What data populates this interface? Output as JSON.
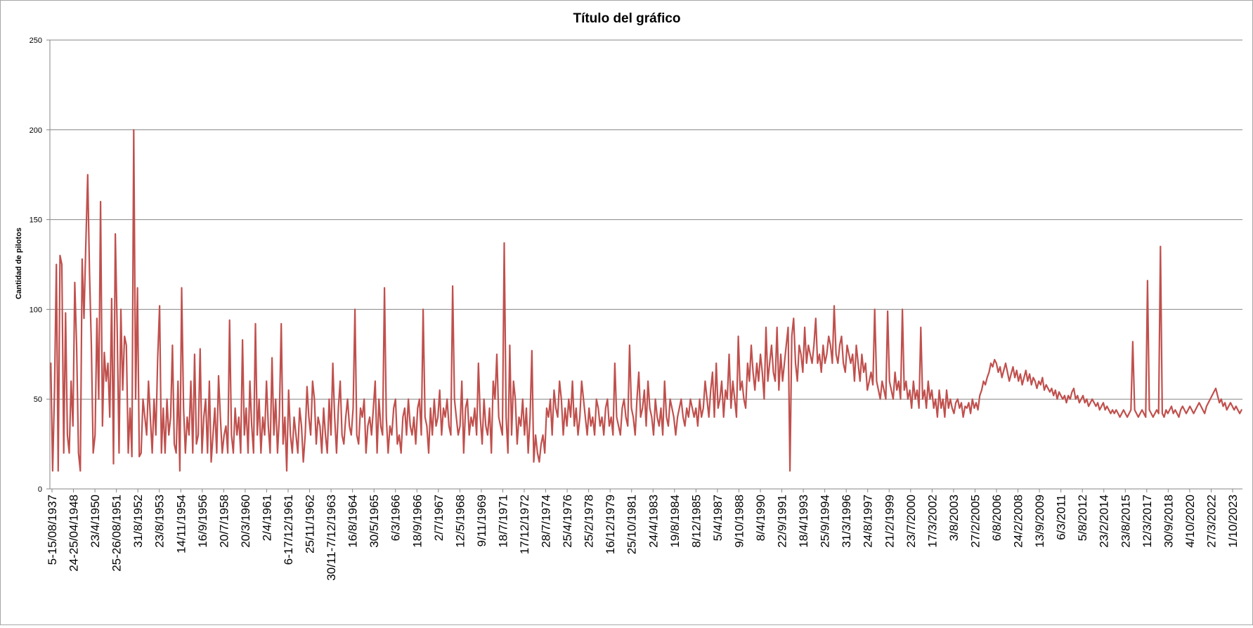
{
  "chart_data": {
    "type": "line",
    "title": "Título del gráfico",
    "xlabel": "",
    "ylabel": "Cantidad de pilotos",
    "ylim": [
      0,
      250
    ],
    "yticks": [
      0,
      50,
      100,
      150,
      200,
      250
    ],
    "grid": true,
    "legend": "none",
    "colors": {
      "line": "#c0504d",
      "grid": "#868686",
      "axis": "#868686",
      "text": "#000000"
    },
    "x_tick_labels": [
      "5-15/08/1937",
      "24-25/04/1948",
      "23/4/1950",
      "25-26/08/1951",
      "31/8/1952",
      "23/8/1953",
      "14/11/1954",
      "16/9/1956",
      "20/7/1958",
      "20/3/1960",
      "2/4/1961",
      "6-17/12/1961",
      "25/11/1962",
      "30/11-7/12/1963",
      "16/8/1964",
      "30/5/1965",
      "6/3/1966",
      "18/9/1966",
      "2/7/1967",
      "12/5/1968",
      "9/11/1969",
      "18/7/1971",
      "17/12/1972",
      "28/7/1974",
      "25/4/1976",
      "25/2/1978",
      "16/12/1979",
      "25/10/1981",
      "24/4/1983",
      "19/8/1984",
      "8/12/1985",
      "5/4/1987",
      "9/10/1988",
      "8/4/1990",
      "22/9/1991",
      "18/4/1993",
      "25/9/1994",
      "31/3/1996",
      "24/8/1997",
      "21/2/1999",
      "23/7/2000",
      "17/3/2002",
      "3/8/2003",
      "27/2/2005",
      "6/8/2006",
      "24/2/2008",
      "13/9/2009",
      "6/3/2011",
      "5/8/2012",
      "23/2/2014",
      "23/8/2015",
      "12/3/2017",
      "30/9/2018",
      "4/10/2020",
      "27/3/2022",
      "1/10/2023"
    ],
    "series": [
      {
        "values": [
          70,
          10,
          55,
          125,
          10,
          130,
          125,
          20,
          98,
          30,
          20,
          60,
          35,
          115,
          80,
          20,
          10,
          128,
          95,
          136,
          175,
          120,
          80,
          20,
          30,
          95,
          50,
          160,
          35,
          76,
          60,
          70,
          40,
          106,
          14,
          142,
          90,
          20,
          100,
          55,
          85,
          80,
          20,
          45,
          18,
          200,
          50,
          112,
          18,
          20,
          50,
          40,
          30,
          60,
          40,
          20,
          50,
          30,
          73,
          102,
          20,
          45,
          20,
          50,
          30,
          40,
          80,
          25,
          20,
          60,
          10,
          112,
          45,
          20,
          40,
          30,
          60,
          20,
          75,
          25,
          30,
          78,
          20,
          40,
          50,
          20,
          60,
          15,
          30,
          45,
          20,
          63,
          40,
          20,
          30,
          35,
          20,
          94,
          30,
          20,
          45,
          30,
          40,
          20,
          83,
          30,
          45,
          20,
          60,
          35,
          20,
          92,
          30,
          50,
          20,
          40,
          30,
          60,
          35,
          20,
          73,
          30,
          50,
          20,
          40,
          92,
          25,
          40,
          10,
          55,
          30,
          20,
          40,
          30,
          20,
          45,
          35,
          15,
          30,
          57,
          40,
          30,
          60,
          50,
          25,
          40,
          35,
          20,
          45,
          30,
          20,
          50,
          30,
          70,
          40,
          20,
          45,
          60,
          30,
          25,
          40,
          50,
          35,
          30,
          45,
          100,
          30,
          25,
          45,
          40,
          50,
          20,
          35,
          40,
          30,
          45,
          60,
          20,
          50,
          35,
          30,
          112,
          40,
          20,
          35,
          30,
          45,
          50,
          25,
          30,
          20,
          40,
          45,
          30,
          50,
          35,
          30,
          40,
          25,
          45,
          50,
          30,
          100,
          40,
          35,
          20,
          45,
          30,
          50,
          35,
          40,
          55,
          30,
          45,
          40,
          50,
          35,
          30,
          113,
          50,
          40,
          30,
          35,
          60,
          20,
          45,
          50,
          30,
          40,
          35,
          45,
          30,
          70,
          40,
          25,
          50,
          35,
          30,
          45,
          20,
          60,
          50,
          75,
          40,
          35,
          30,
          137,
          40,
          20,
          80,
          30,
          60,
          50,
          25,
          40,
          35,
          50,
          30,
          45,
          20,
          40,
          77,
          15,
          30,
          20,
          15,
          25,
          30,
          20,
          45,
          40,
          50,
          30,
          55,
          45,
          40,
          60,
          50,
          30,
          45,
          35,
          50,
          40,
          60,
          35,
          45,
          30,
          40,
          60,
          50,
          40,
          30,
          45,
          35,
          40,
          30,
          50,
          45,
          35,
          40,
          30,
          45,
          50,
          35,
          40,
          30,
          70,
          40,
          35,
          30,
          45,
          50,
          40,
          35,
          80,
          45,
          40,
          30,
          50,
          65,
          40,
          45,
          55,
          35,
          60,
          45,
          40,
          30,
          50,
          40,
          35,
          45,
          30,
          60,
          40,
          35,
          50,
          45,
          40,
          30,
          40,
          45,
          50,
          40,
          35,
          45,
          40,
          50,
          45,
          40,
          45,
          35,
          50,
          40,
          45,
          60,
          50,
          40,
          55,
          65,
          40,
          70,
          45,
          50,
          60,
          40,
          55,
          50,
          75,
          45,
          60,
          50,
          40,
          85,
          55,
          60,
          50,
          45,
          70,
          60,
          80,
          65,
          55,
          70,
          60,
          75,
          65,
          50,
          90,
          60,
          70,
          80,
          65,
          60,
          90,
          55,
          75,
          60,
          70,
          80,
          90,
          10,
          85,
          95,
          70,
          60,
          80,
          75,
          65,
          90,
          70,
          80,
          75,
          70,
          80,
          95,
          70,
          75,
          65,
          80,
          70,
          75,
          85,
          80,
          70,
          102,
          75,
          70,
          80,
          85,
          70,
          65,
          80,
          75,
          70,
          75,
          60,
          80,
          70,
          60,
          75,
          65,
          70,
          55,
          60,
          65,
          58,
          100,
          60,
          55,
          50,
          60,
          55,
          50,
          99,
          60,
          55,
          50,
          65,
          55,
          60,
          50,
          100,
          55,
          60,
          50,
          55,
          45,
          60,
          50,
          55,
          45,
          90,
          50,
          55,
          45,
          60,
          50,
          55,
          45,
          50,
          40,
          55,
          45,
          50,
          40,
          55,
          45,
          50,
          45,
          42,
          48,
          50,
          45,
          48,
          40,
          46,
          45,
          48,
          42,
          50,
          45,
          48,
          44,
          52,
          55,
          60,
          58,
          62,
          65,
          70,
          68,
          72,
          70,
          65,
          68,
          62,
          66,
          70,
          65,
          60,
          64,
          68,
          62,
          66,
          60,
          64,
          58,
          62,
          66,
          60,
          64,
          58,
          62,
          60,
          56,
          60,
          58,
          62,
          55,
          58,
          56,
          54,
          56,
          52,
          55,
          50,
          54,
          52,
          50,
          52,
          48,
          52,
          50,
          54,
          56,
          50,
          52,
          48,
          50,
          52,
          48,
          50,
          46,
          48,
          50,
          48,
          46,
          48,
          44,
          46,
          48,
          44,
          46,
          44,
          42,
          44,
          42,
          44,
          42,
          40,
          42,
          44,
          42,
          40,
          42,
          44,
          82,
          44,
          42,
          40,
          42,
          44,
          42,
          40,
          116,
          44,
          42,
          40,
          42,
          44,
          42,
          135,
          42,
          40,
          44,
          42,
          44,
          46,
          42,
          44,
          42,
          40,
          44,
          46,
          44,
          42,
          44,
          46,
          44,
          42,
          44,
          46,
          48,
          46,
          44,
          42,
          46,
          48,
          50,
          52,
          54,
          56,
          52,
          48,
          50,
          46,
          48,
          44,
          46,
          48,
          46,
          44,
          46,
          44,
          42,
          44
        ]
      }
    ]
  }
}
